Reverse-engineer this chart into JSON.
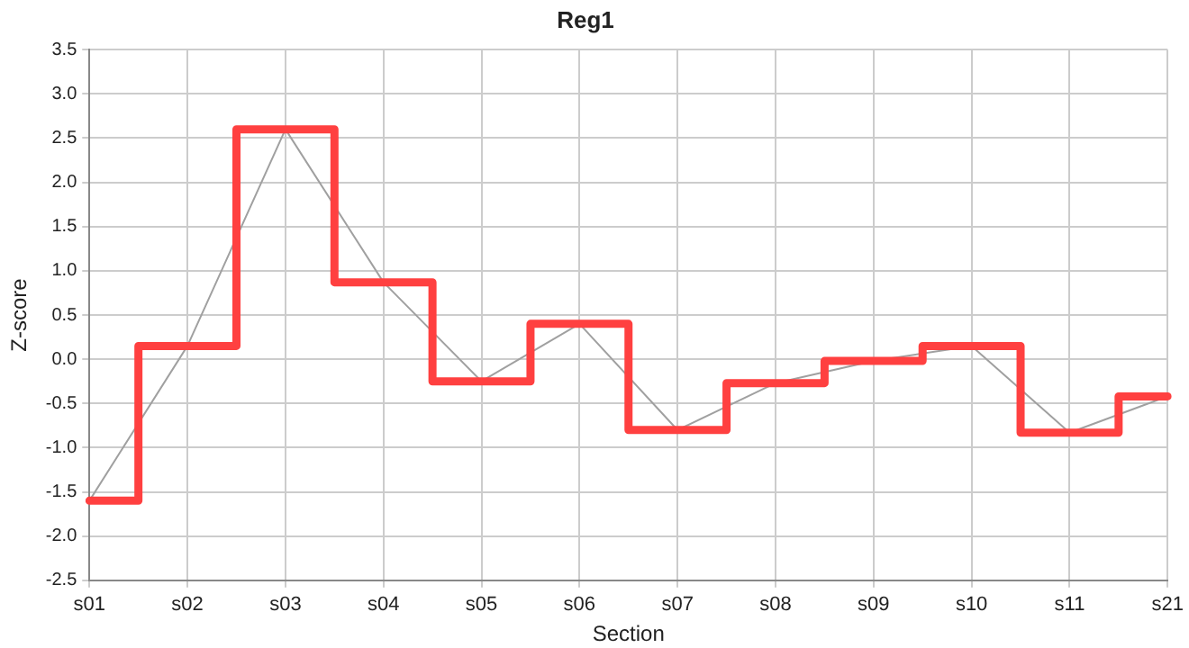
{
  "chart_data": {
    "type": "line",
    "title": "Reg1",
    "xlabel": "Section",
    "ylabel": "Z-score",
    "categories": [
      "s01",
      "s02",
      "s03",
      "s04",
      "s05",
      "s06",
      "s07",
      "s08",
      "s09",
      "s10",
      "s11",
      "s21"
    ],
    "series": [
      {
        "type": "line",
        "color": "#a0a0a0",
        "values": [
          -1.6,
          0.15,
          2.6,
          0.87,
          -0.25,
          0.4,
          -0.8,
          -0.27,
          -0.02,
          0.15,
          -0.83,
          -0.42
        ]
      },
      {
        "type": "step",
        "color": "#ff4040",
        "values": [
          -1.6,
          0.15,
          2.6,
          0.87,
          -0.25,
          0.4,
          -0.8,
          -0.27,
          -0.02,
          0.15,
          -0.83,
          -0.42
        ]
      }
    ],
    "ylim": [
      -2.5,
      3.5
    ],
    "yticks": [
      {
        "value": -2.5,
        "label": "-2.5"
      },
      {
        "value": -2,
        "label": "-2.0"
      },
      {
        "value": -1.5,
        "label": "-1.5"
      },
      {
        "value": -1,
        "label": "-1.0"
      },
      {
        "value": -0.5,
        "label": "-0.5"
      },
      {
        "value": 0,
        "label": "0.0"
      },
      {
        "value": 0.5,
        "label": "0.5"
      },
      {
        "value": 1,
        "label": "1.0"
      },
      {
        "value": 1.5,
        "label": "1.5"
      },
      {
        "value": 2,
        "label": "2.0"
      },
      {
        "value": 2.5,
        "label": "2.5"
      },
      {
        "value": 3,
        "label": "3.0"
      },
      {
        "value": 3.5,
        "label": "3.5"
      }
    ],
    "grid": true,
    "legend": false,
    "marker": "none"
  }
}
